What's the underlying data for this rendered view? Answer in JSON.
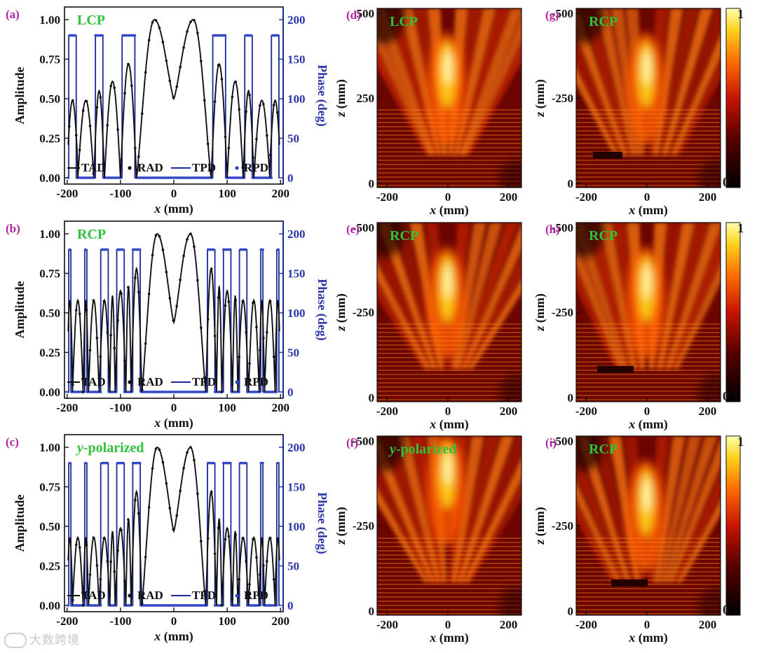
{
  "figure": {
    "line_panels": [
      {
        "label": "(a)",
        "inset": "LCP",
        "inset_italic_prefix": "",
        "chart_data": {
          "type": "line",
          "x_label_var": "x",
          "x_label_unit": " (mm)",
          "ylabel_left": "Amplitude",
          "ylabel_right": "Phase (deg)",
          "xlim": [
            -205,
            205
          ],
          "ylim_left": [
            -0.04,
            1.08
          ],
          "ylim_right": [
            -8,
            216
          ],
          "x_ticks": [
            -200,
            -100,
            0,
            100,
            200
          ],
          "x_tick_labels": [
            "-200",
            "-100",
            "0",
            "100",
            "200"
          ],
          "y_left_ticks": [
            0,
            0.25,
            0.5,
            0.75,
            1.0
          ],
          "y_left_tick_labels": [
            "0.00",
            "0.25",
            "0.50",
            "0.75",
            "1.00"
          ],
          "y_right_ticks": [
            0,
            50,
            100,
            150,
            200
          ],
          "y_right_tick_labels": [
            "0",
            "50",
            "100",
            "150",
            "200"
          ],
          "phase_edges": [
            -200,
            -180,
            -150,
            -130,
            -100,
            -70,
            70,
            100,
            130,
            150,
            180,
            200
          ],
          "amplitude_peaks": [
            0.49,
            0.55,
            0.61,
            0.72,
            1.0
          ],
          "amplitude_center": 0.5,
          "legend": [
            "TAD",
            "RAD",
            "TPD",
            "RPD"
          ]
        }
      },
      {
        "label": "(b)",
        "inset": "RCP",
        "inset_italic_prefix": "",
        "chart_data": {
          "type": "line",
          "x_label_var": "x",
          "x_label_unit": " (mm)",
          "ylabel_left": "Amplitude",
          "ylabel_right": "Phase (deg)",
          "xlim": [
            -205,
            205
          ],
          "ylim_left": [
            -0.04,
            1.08
          ],
          "ylim_right": [
            -8,
            216
          ],
          "x_ticks": [
            -200,
            -100,
            0,
            100,
            200
          ],
          "x_tick_labels": [
            "-200",
            "-100",
            "0",
            "100",
            "200"
          ],
          "y_left_ticks": [
            0,
            0.25,
            0.5,
            0.75,
            1.0
          ],
          "y_left_tick_labels": [
            "0.00",
            "0.25",
            "0.50",
            "0.75",
            "1.00"
          ],
          "y_right_ticks": [
            0,
            50,
            100,
            150,
            200
          ],
          "y_right_tick_labels": [
            "0",
            "50",
            "100",
            "150",
            "200"
          ],
          "phase_edges": [
            -200,
            -190,
            -170,
            -160,
            -140,
            -120,
            -110,
            -90,
            -80,
            -60,
            60,
            80,
            90,
            110,
            120,
            140,
            160,
            170,
            190,
            200
          ],
          "amplitude_peaks": [
            0.58,
            0.61,
            0.64,
            0.67,
            0.78,
            1.0
          ],
          "amplitude_center": 0.44,
          "legend": [
            "TAD",
            "RAD",
            "TPD",
            "RPD"
          ]
        }
      },
      {
        "label": "(c)",
        "inset": "-polarized",
        "inset_italic_prefix": "y",
        "chart_data": {
          "type": "line",
          "x_label_var": "x",
          "x_label_unit": " (mm)",
          "ylabel_left": "Amplitude",
          "ylabel_right": "Phase (deg)",
          "xlim": [
            -205,
            205
          ],
          "ylim_left": [
            -0.04,
            1.08
          ],
          "ylim_right": [
            -8,
            216
          ],
          "x_ticks": [
            -200,
            -100,
            0,
            100,
            200
          ],
          "x_tick_labels": [
            "-200",
            "-100",
            "0",
            "100",
            "200"
          ],
          "y_left_ticks": [
            0,
            0.25,
            0.5,
            0.75,
            1.0
          ],
          "y_left_tick_labels": [
            "0.00",
            "0.25",
            "0.50",
            "0.75",
            "1.00"
          ],
          "y_right_ticks": [
            0,
            50,
            100,
            150,
            200
          ],
          "y_right_tick_labels": [
            "0",
            "50",
            "100",
            "150",
            "200"
          ],
          "phase_edges": [
            -200,
            -190,
            -170,
            -160,
            -140,
            -120,
            -110,
            -90,
            -80,
            -60,
            60,
            80,
            90,
            110,
            120,
            140,
            160,
            170,
            190,
            200
          ],
          "amplitude_peaks": [
            0.43,
            0.47,
            0.49,
            0.55,
            0.72,
            1.0
          ],
          "amplitude_center": 0.47,
          "legend": [
            "TAD",
            "RAD",
            "TPD",
            "RPD"
          ]
        }
      }
    ],
    "field_panels": [
      {
        "label": "(d)",
        "inset": "LCP",
        "inset_italic_prefix": "",
        "z_tick_labels": [
          "500",
          "250",
          "0"
        ],
        "variant": 0
      },
      {
        "label": "(g)",
        "inset": "RCP",
        "inset_italic_prefix": "",
        "z_tick_labels": [
          "-500",
          "-250",
          "0"
        ],
        "variant": 1
      },
      {
        "label": "(e)",
        "inset": "RCP",
        "inset_italic_prefix": "",
        "z_tick_labels": [
          "-500",
          "-250",
          "0"
        ],
        "variant": 2
      },
      {
        "label": "(h)",
        "inset": "RCP",
        "inset_italic_prefix": "",
        "z_tick_labels": [
          "-500",
          "-250",
          "0"
        ],
        "variant": 3
      },
      {
        "label": "(f)",
        "inset": "-polarized",
        "inset_italic_prefix": "y",
        "z_tick_labels": [
          "-500",
          "-250",
          "0"
        ],
        "variant": 4
      },
      {
        "label": "(i)",
        "inset": "RCP",
        "inset_italic_prefix": "",
        "z_tick_labels": [
          "-500",
          "-250",
          "0"
        ],
        "variant": 5
      }
    ],
    "field_axes": {
      "x_tick_labels": [
        "-200",
        "0",
        "200"
      ],
      "x_label_var": "x",
      "x_label_unit": " (mm)",
      "z_label_var": "z",
      "z_label_unit": " (mm)"
    },
    "colorbar": {
      "max_label": "1",
      "min_label": "0"
    },
    "colors": {
      "amplitude": "#111111",
      "phase": "#1a2a9a",
      "phase_label": "#2b35a8",
      "panel_label": "#b022a0",
      "inset_label": "#2fc23a"
    },
    "watermark": "大数跨境"
  }
}
